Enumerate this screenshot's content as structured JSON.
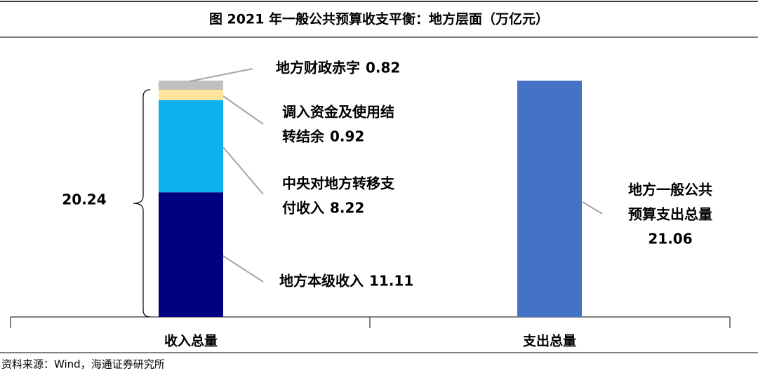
{
  "chart_data": {
    "type": "stacked_bar",
    "title": "图 2021 年一般公共预算收支平衡：地方层面（万亿元）",
    "categories": [
      "收入总量",
      "支出总量"
    ],
    "ylim": [
      0,
      25
    ],
    "series": [
      {
        "name": [
          "地方本级收入"
        ],
        "color": "#000080",
        "values": [
          11.11,
          null
        ]
      },
      {
        "name": [
          "中央对地方转移支",
          "付收入"
        ],
        "color": "#0fb0f0",
        "values": [
          8.22,
          null
        ]
      },
      {
        "name": [
          "调入资金及使用结",
          "转结余"
        ],
        "color": "#ffe69c",
        "values": [
          0.92,
          null
        ]
      },
      {
        "name": [
          "地方财政赤字"
        ],
        "color": "#bfbfbf",
        "values": [
          0.82,
          null
        ]
      },
      {
        "name": [
          "地方一般公共",
          "预算支出总量"
        ],
        "color": "#4472c4",
        "values": [
          null,
          21.06
        ]
      }
    ],
    "brace_value": 20.24,
    "source": "资料来源：Wind，海通证券研究所"
  }
}
